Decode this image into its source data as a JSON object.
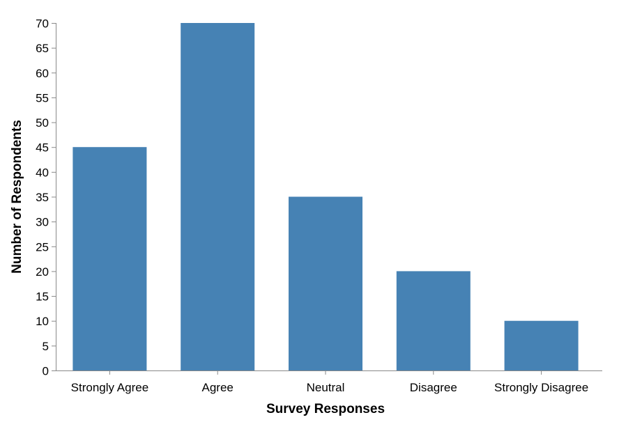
{
  "chart_data": {
    "type": "bar",
    "title": "",
    "categories": [
      "Strongly Agree",
      "Agree",
      "Neutral",
      "Disagree",
      "Strongly Disagree"
    ],
    "values": [
      45,
      70,
      35,
      20,
      10
    ],
    "xlabel": "Survey Responses",
    "ylabel": "Number of Respondents",
    "ylim": [
      0,
      70
    ],
    "yticks": [
      "0",
      "5",
      "10",
      "15",
      "20",
      "25",
      "30",
      "35",
      "40",
      "45",
      "50",
      "55",
      "60",
      "65",
      "70"
    ],
    "grid": false,
    "legend": "none",
    "bar_color": "#4682b4"
  }
}
